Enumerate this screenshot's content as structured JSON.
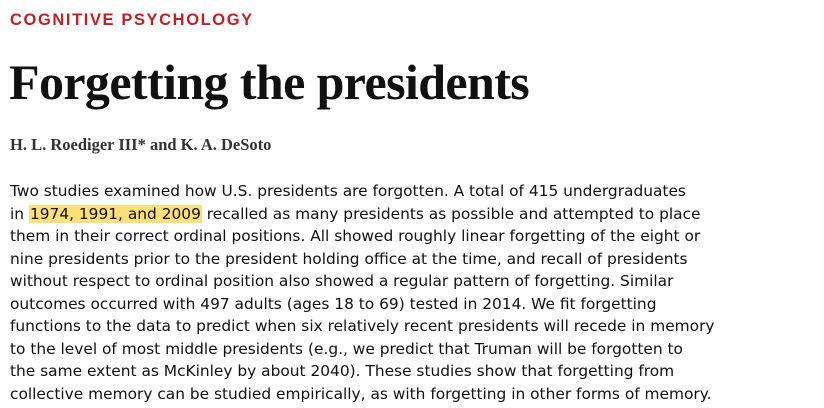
{
  "section_label": "COGNITIVE PSYCHOLOGY",
  "title": "Forgetting the presidents",
  "authors": "H. L. Roediger III* and K. A. DeSoto",
  "abstract": {
    "line1": "Two studies examined how U.S. presidents are forgotten. A total of 415 undergraduates",
    "line2_before": "in ",
    "line2_highlight": "1974, 1991, and 2009",
    "line2_after": " recalled as many presidents as possible and attempted to place",
    "line3": "them in their correct ordinal positions. All showed roughly linear forgetting of the eight or",
    "line4": "nine presidents prior to the president holding office at the time, and recall of presidents",
    "line5": "without respect to ordinal position also showed a regular pattern of forgetting. Similar",
    "line6": "outcomes occurred with 497 adults (ages 18 to 69) tested in 2014. We fit forgetting",
    "line7": "functions to the data to predict when six relatively recent presidents will recede in memory",
    "line8": "to the level of most middle presidents (e.g., we predict that Truman will be forgotten to",
    "line9": "the same extent as McKinley by about 2040). These studies show that forgetting from",
    "line10": "collective memory can be studied empirically, as with forgetting in other forms of memory."
  },
  "colors": {
    "section_label": "#c41e24",
    "highlight": "#fbe07a",
    "text": "#111111"
  }
}
